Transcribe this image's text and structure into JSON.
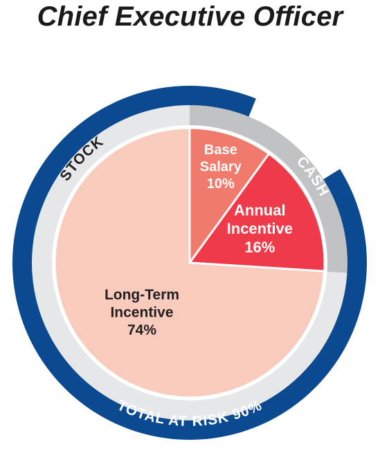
{
  "title": "Chief Executive Officer",
  "chart_data": {
    "type": "pie",
    "title": "Chief Executive Officer",
    "slices": [
      {
        "label_lines": [
          "Base",
          "Salary",
          "10%"
        ],
        "label": "Base Salary",
        "value": 10,
        "color": "#f07b6c"
      },
      {
        "label_lines": [
          "Annual",
          "Incentive",
          "16%"
        ],
        "label": "Annual Incentive",
        "value": 16,
        "color": "#ee3a49"
      },
      {
        "label_lines": [
          "Long-Term",
          "Incentive",
          "74%"
        ],
        "label": "Long-Term Incentive",
        "value": 74,
        "color": "#f9cbbd"
      }
    ],
    "inner_ring": [
      {
        "label": "CASH",
        "value": 26,
        "color": "#c1c2c4"
      },
      {
        "label": "STOCK",
        "value": 74,
        "color": "#e6e7e8"
      }
    ],
    "outer_ring": {
      "label": "TOTAL AT RISK",
      "value_label": "90%",
      "value": 90,
      "color": "#0b4a90"
    }
  }
}
